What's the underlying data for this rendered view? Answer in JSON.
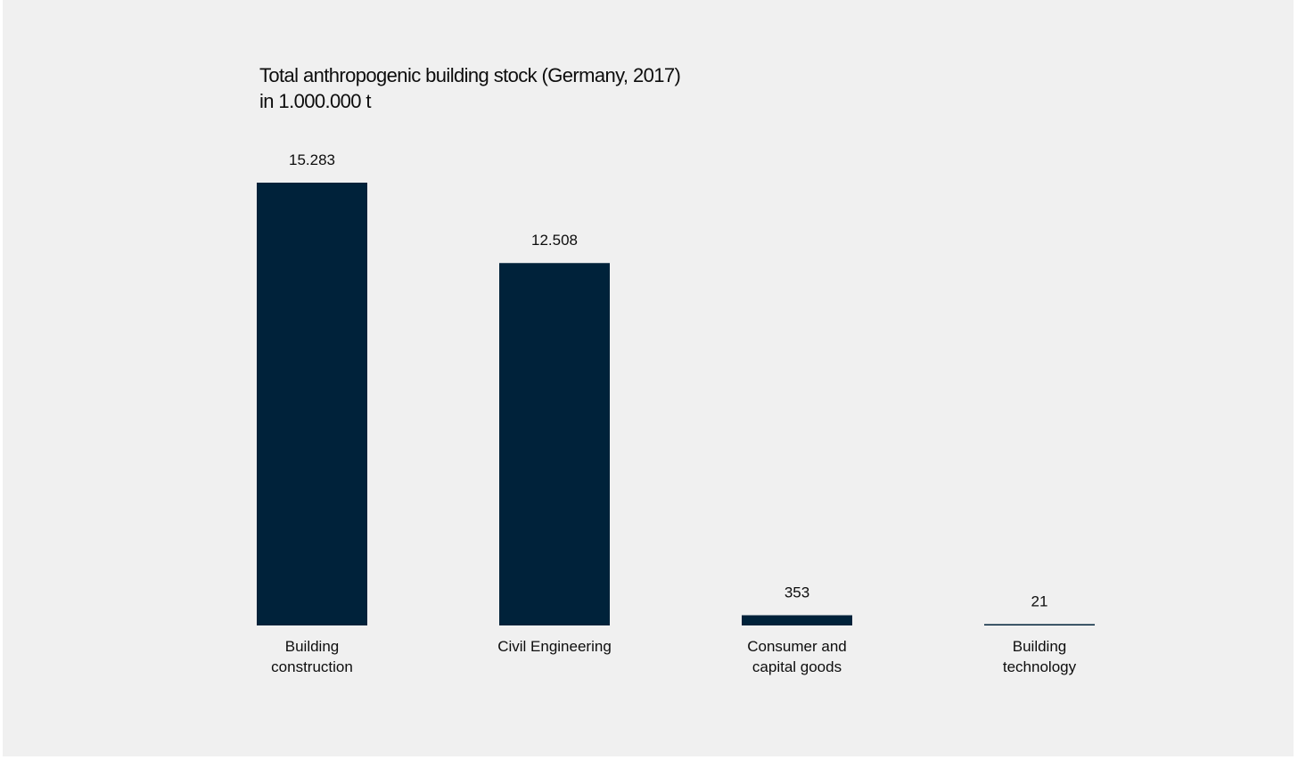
{
  "chart_data": {
    "type": "bar",
    "title": "Total anthropogenic building stock (Germany, 2017)",
    "subtitle": "in 1.000.000 t",
    "categories": [
      [
        "Building",
        "construction"
      ],
      [
        "Civil Engineering"
      ],
      [
        "Consumer and",
        "capital goods"
      ],
      [
        "Building",
        "technology"
      ]
    ],
    "values": [
      15283,
      12508,
      353,
      21
    ],
    "value_labels": [
      "15.283",
      "12.508",
      "353",
      "21"
    ],
    "bar_color": "#00223a",
    "background": "#f0f0f0",
    "grid": false,
    "legend": "none"
  }
}
